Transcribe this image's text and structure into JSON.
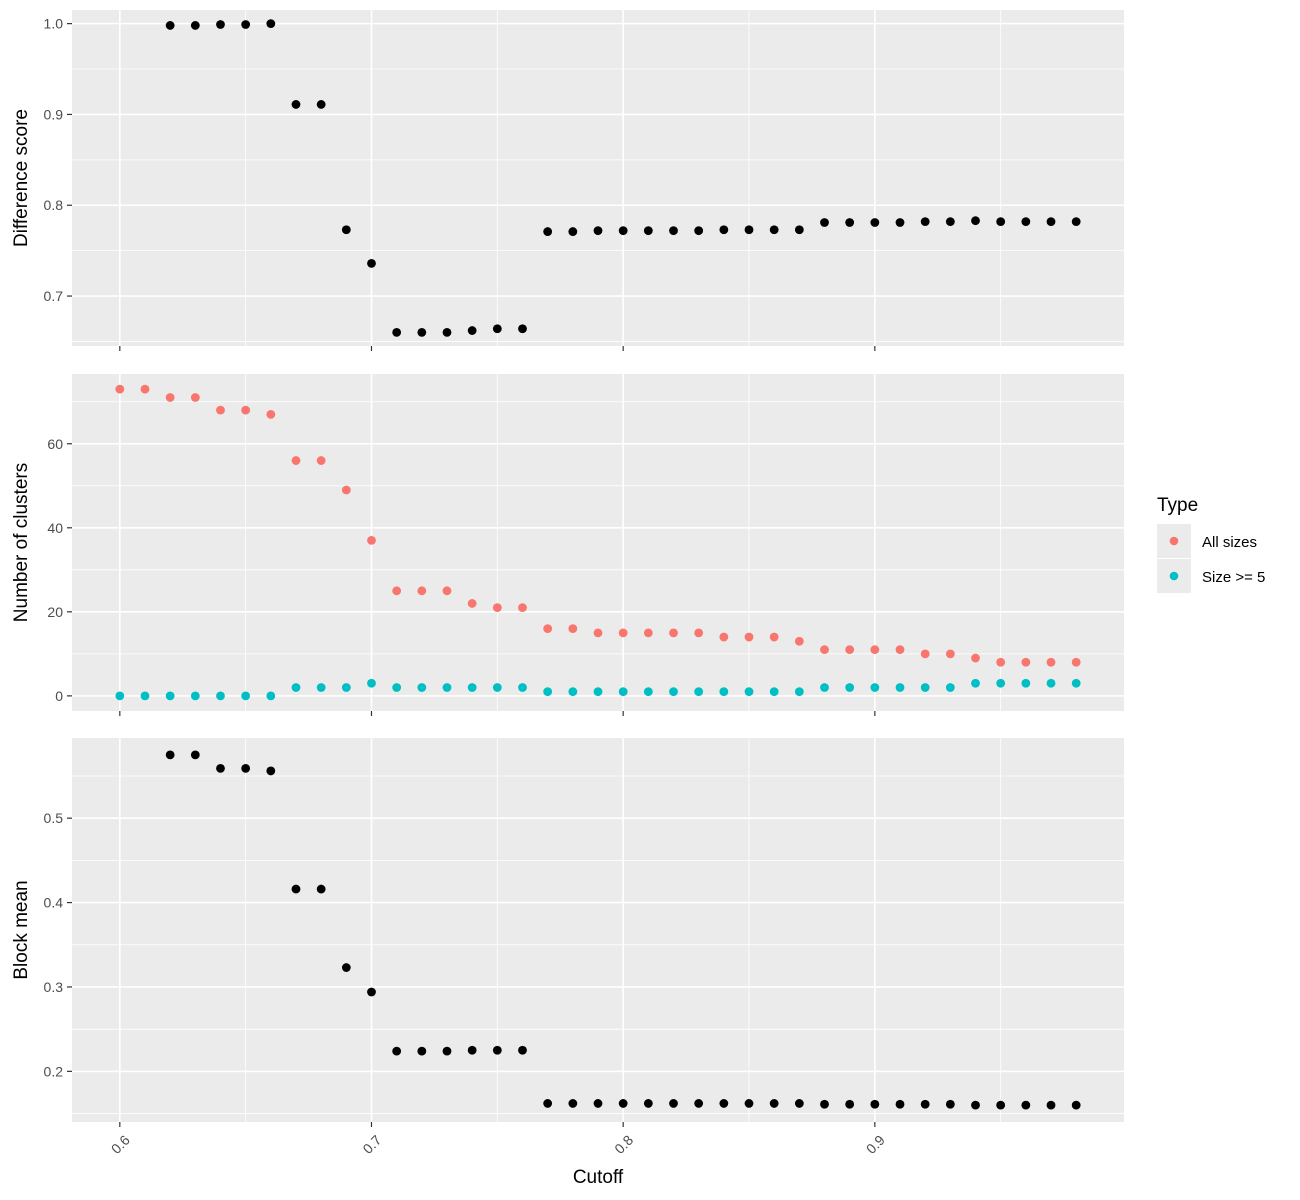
{
  "chart_data": [
    {
      "type": "scatter",
      "panel": "top",
      "ylabel": "Difference score",
      "ylim": [
        0.645,
        1.015
      ],
      "yticks": [
        0.7,
        0.8,
        0.9,
        1.0
      ],
      "ytick_labels": [
        "0.7",
        "0.8",
        "0.9",
        "1.0"
      ],
      "grid": true,
      "series": [
        {
          "color": "#000000",
          "x": [
            0.62,
            0.63,
            0.64,
            0.65,
            0.66,
            0.67,
            0.68,
            0.69,
            0.7,
            0.71,
            0.72,
            0.73,
            0.74,
            0.75,
            0.76,
            0.77,
            0.78,
            0.79,
            0.8,
            0.81,
            0.82,
            0.83,
            0.84,
            0.85,
            0.86,
            0.87,
            0.88,
            0.89,
            0.9,
            0.91,
            0.92,
            0.93,
            0.94,
            0.95,
            0.96,
            0.97,
            0.98
          ],
          "values": [
            0.998,
            0.998,
            0.999,
            0.999,
            1.0,
            0.911,
            0.911,
            0.773,
            0.736,
            0.66,
            0.66,
            0.66,
            0.662,
            0.664,
            0.664,
            0.771,
            0.771,
            0.772,
            0.772,
            0.772,
            0.772,
            0.772,
            0.773,
            0.773,
            0.773,
            0.773,
            0.781,
            0.781,
            0.781,
            0.781,
            0.782,
            0.782,
            0.783,
            0.782,
            0.782,
            0.782,
            0.782
          ]
        }
      ]
    },
    {
      "type": "scatter",
      "panel": "middle",
      "ylabel": "Number of clusters",
      "ylim": [
        -3.6,
        76.6
      ],
      "yticks": [
        0,
        20,
        40,
        60
      ],
      "ytick_labels": [
        "0",
        "20",
        "40",
        "60"
      ],
      "grid": true,
      "legend": {
        "title": "Type",
        "position": "right",
        "entries": [
          {
            "label": "All sizes",
            "color": "#F8766D"
          },
          {
            "label": "Size >= 5",
            "color": "#00BFC4"
          }
        ]
      },
      "series": [
        {
          "name": "All sizes",
          "color": "#F8766D",
          "x": [
            0.6,
            0.61,
            0.62,
            0.63,
            0.64,
            0.65,
            0.66,
            0.67,
            0.68,
            0.69,
            0.7,
            0.71,
            0.72,
            0.73,
            0.74,
            0.75,
            0.76,
            0.77,
            0.78,
            0.79,
            0.8,
            0.81,
            0.82,
            0.83,
            0.84,
            0.85,
            0.86,
            0.87,
            0.88,
            0.89,
            0.9,
            0.91,
            0.92,
            0.93,
            0.94,
            0.95,
            0.96,
            0.97,
            0.98
          ],
          "values": [
            73,
            73,
            71,
            71,
            68,
            68,
            67,
            56,
            56,
            49,
            37,
            25,
            25,
            25,
            22,
            21,
            21,
            16,
            16,
            15,
            15,
            15,
            15,
            15,
            14,
            14,
            14,
            13,
            11,
            11,
            11,
            11,
            10,
            10,
            9,
            8,
            8,
            8,
            8
          ]
        },
        {
          "name": "Size >= 5",
          "color": "#00BFC4",
          "x": [
            0.6,
            0.61,
            0.62,
            0.63,
            0.64,
            0.65,
            0.66,
            0.67,
            0.68,
            0.69,
            0.7,
            0.71,
            0.72,
            0.73,
            0.74,
            0.75,
            0.76,
            0.77,
            0.78,
            0.79,
            0.8,
            0.81,
            0.82,
            0.83,
            0.84,
            0.85,
            0.86,
            0.87,
            0.88,
            0.89,
            0.9,
            0.91,
            0.92,
            0.93,
            0.94,
            0.95,
            0.96,
            0.97,
            0.98
          ],
          "values": [
            0,
            0,
            0,
            0,
            0,
            0,
            0,
            2,
            2,
            2,
            3,
            2,
            2,
            2,
            2,
            2,
            2,
            1,
            1,
            1,
            1,
            1,
            1,
            1,
            1,
            1,
            1,
            1,
            2,
            2,
            2,
            2,
            2,
            2,
            3,
            3,
            3,
            3,
            3
          ]
        }
      ]
    },
    {
      "type": "scatter",
      "panel": "bottom",
      "ylabel": "Block mean",
      "xlabel": "Cutoff",
      "ylim": [
        0.14,
        0.595
      ],
      "yticks": [
        0.2,
        0.3,
        0.4,
        0.5
      ],
      "ytick_labels": [
        "0.2",
        "0.3",
        "0.4",
        "0.5"
      ],
      "grid": true,
      "series": [
        {
          "color": "#000000",
          "x": [
            0.62,
            0.63,
            0.64,
            0.65,
            0.66,
            0.67,
            0.68,
            0.69,
            0.7,
            0.71,
            0.72,
            0.73,
            0.74,
            0.75,
            0.76,
            0.77,
            0.78,
            0.79,
            0.8,
            0.81,
            0.82,
            0.83,
            0.84,
            0.85,
            0.86,
            0.87,
            0.88,
            0.89,
            0.9,
            0.91,
            0.92,
            0.93,
            0.94,
            0.95,
            0.96,
            0.97,
            0.98
          ],
          "values": [
            0.575,
            0.575,
            0.559,
            0.559,
            0.556,
            0.416,
            0.416,
            0.323,
            0.294,
            0.224,
            0.224,
            0.224,
            0.225,
            0.225,
            0.225,
            0.162,
            0.162,
            0.162,
            0.162,
            0.162,
            0.162,
            0.162,
            0.162,
            0.162,
            0.162,
            0.162,
            0.161,
            0.161,
            0.161,
            0.161,
            0.161,
            0.161,
            0.16,
            0.16,
            0.16,
            0.16,
            0.16
          ]
        }
      ]
    }
  ],
  "x_axis": {
    "label": "Cutoff",
    "xlim": [
      0.581,
      0.999
    ],
    "ticks": [
      0.6,
      0.7,
      0.8,
      0.9
    ],
    "tick_labels": [
      "0.6",
      "0.7",
      "0.8",
      "0.9"
    ]
  }
}
